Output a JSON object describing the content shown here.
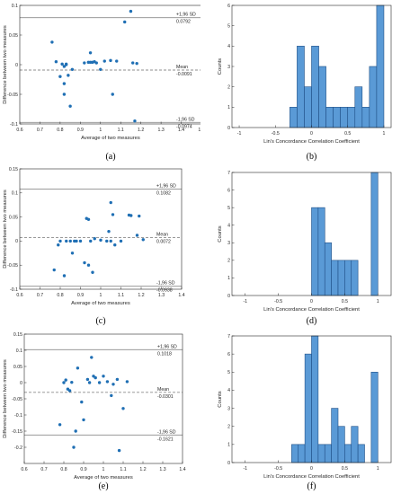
{
  "colors": {
    "marker": "#1f6fb4",
    "bar_fill": "#5a9ad6",
    "bar_edge": "#1f4f86",
    "sd_line": "#8c8c8c",
    "mean_line": "#8c8c8c",
    "axis": "#262626"
  },
  "chart_data": [
    {
      "id": "a",
      "caption": "(a)",
      "type": "scatter",
      "xlabel": "Average of two measures",
      "ylabel": "Difference between two measures",
      "xlim": [
        0.6,
        1.5
      ],
      "ylim": [
        -0.1,
        0.1
      ],
      "xticks": [
        0.6,
        0.7,
        0.8,
        0.9,
        1,
        1.1,
        1.2,
        1.3,
        1.4,
        1.5
      ],
      "xtick_labels": [
        "0.6",
        "0.7",
        "0.8",
        "0.9",
        "1",
        "1.1",
        "1.2",
        "1.3",
        "1.4",
        "1.5"
      ],
      "yticks": [
        -0.1,
        -0.05,
        0,
        0.05,
        0.1
      ],
      "ytick_labels": [
        "-0.1",
        "-0.05",
        "0",
        "0.05",
        "0.1"
      ],
      "lines": [
        {
          "y": 0.0792,
          "style": "solid",
          "label1": "+1,96 SD",
          "label2": "0.0792"
        },
        {
          "y": -0.0091,
          "style": "dashed",
          "label1": "Mean",
          "label2": "-0.0091"
        },
        {
          "y": -0.0974,
          "style": "solid",
          "label1": "-1,96 SD",
          "label2": "-0.0974"
        }
      ],
      "points": [
        [
          0.76,
          0.038
        ],
        [
          0.78,
          0.005
        ],
        [
          0.8,
          -0.02
        ],
        [
          0.81,
          0.001
        ],
        [
          0.82,
          -0.003
        ],
        [
          0.82,
          -0.032
        ],
        [
          0.83,
          0.001
        ],
        [
          0.83,
          0.0
        ],
        [
          0.84,
          -0.018
        ],
        [
          0.85,
          -0.07
        ],
        [
          0.82,
          -0.05
        ],
        [
          0.86,
          -0.008
        ],
        [
          0.92,
          0.003
        ],
        [
          0.94,
          0.004
        ],
        [
          0.95,
          0.004
        ],
        [
          0.97,
          0.005
        ],
        [
          0.98,
          0.003
        ],
        [
          0.96,
          0.004
        ],
        [
          1.0,
          -0.008
        ],
        [
          0.95,
          0.02
        ],
        [
          1.02,
          0.006
        ],
        [
          1.05,
          0.007
        ],
        [
          1.08,
          0.006
        ],
        [
          1.06,
          -0.05
        ],
        [
          1.12,
          0.072
        ],
        [
          1.15,
          0.09
        ],
        [
          1.16,
          0.003
        ],
        [
          1.18,
          0.002
        ],
        [
          1.17,
          -0.095
        ]
      ]
    },
    {
      "id": "b",
      "caption": "(b)",
      "type": "bar",
      "xlabel": "Lin's Concordance Correlation Coefficient",
      "ylabel": "Counts",
      "xlim": [
        -1.1,
        1.1
      ],
      "ylim": [
        0,
        6
      ],
      "xticks": [
        -1,
        -0.5,
        0,
        0.5,
        1
      ],
      "xtick_labels": [
        "-1",
        "-0.5",
        "0",
        "0.5",
        "1"
      ],
      "yticks": [
        0,
        1,
        2,
        3,
        4,
        5,
        6
      ],
      "ytick_labels": [
        "0",
        "1",
        "2",
        "3",
        "4",
        "5",
        "6"
      ],
      "bin_edges": [
        -0.3,
        -0.2,
        -0.1,
        0,
        0.1,
        0.2,
        0.3,
        0.4,
        0.5,
        0.6,
        0.7,
        0.8,
        0.9,
        1.0
      ],
      "values": [
        1,
        4,
        2,
        4,
        3,
        1,
        1,
        1,
        1,
        2,
        1,
        3,
        6
      ]
    },
    {
      "id": "c",
      "caption": "(c)",
      "type": "scatter",
      "xlabel": "Average of two measures",
      "ylabel": "Difference between two measures",
      "xlim": [
        0.6,
        1.4
      ],
      "ylim": [
        -0.1,
        0.15
      ],
      "xticks": [
        0.6,
        0.7,
        0.8,
        0.9,
        1,
        1.1,
        1.2,
        1.3,
        1.4
      ],
      "xtick_labels": [
        "0.6",
        "0.7",
        "0.8",
        "0.9",
        "1",
        "1.1",
        "1.2",
        "1.3",
        "1.4"
      ],
      "yticks": [
        -0.1,
        -0.05,
        0,
        0.05,
        0.1,
        0.15
      ],
      "ytick_labels": [
        "-0.1",
        "-0.05",
        "0",
        "0.05",
        "0.1",
        "0.15"
      ],
      "lines": [
        {
          "y": 0.1082,
          "style": "solid",
          "label1": "+1,96 SD",
          "label2": "0.1082"
        },
        {
          "y": 0.0072,
          "style": "dashed",
          "label1": "Mean",
          "label2": "0.0072"
        },
        {
          "y": -0.0938,
          "style": "solid",
          "label1": "-1,96 SD",
          "label2": "-0.0938"
        }
      ],
      "points": [
        [
          0.77,
          -0.06
        ],
        [
          0.79,
          -0.008
        ],
        [
          0.8,
          0.0
        ],
        [
          0.82,
          -0.072
        ],
        [
          0.83,
          0.0
        ],
        [
          0.85,
          0.0
        ],
        [
          0.86,
          -0.025
        ],
        [
          0.87,
          0.0
        ],
        [
          0.88,
          0.0
        ],
        [
          0.9,
          0.0
        ],
        [
          0.92,
          -0.045
        ],
        [
          0.93,
          0.047
        ],
        [
          0.94,
          0.045
        ],
        [
          0.94,
          -0.05
        ],
        [
          0.95,
          0.0
        ],
        [
          0.96,
          -0.065
        ],
        [
          0.97,
          0.005
        ],
        [
          1.0,
          0.002
        ],
        [
          1.03,
          0.0
        ],
        [
          1.04,
          0.02
        ],
        [
          1.05,
          0.08
        ],
        [
          1.06,
          0.055
        ],
        [
          1.05,
          0.0
        ],
        [
          1.07,
          -0.008
        ],
        [
          1.1,
          0.0
        ],
        [
          1.14,
          0.054
        ],
        [
          1.15,
          0.053
        ],
        [
          1.18,
          0.012
        ],
        [
          1.19,
          0.052
        ],
        [
          1.21,
          0.003
        ]
      ]
    },
    {
      "id": "d",
      "caption": "(d)",
      "type": "bar",
      "xlabel": "Lin's Concordance Correlation Coefficient",
      "ylabel": "Counts",
      "xlim": [
        -1.2,
        1.2
      ],
      "ylim": [
        0,
        7
      ],
      "xticks": [
        -1,
        -0.5,
        0,
        0.5,
        1
      ],
      "xtick_labels": [
        "-1",
        "-0.5",
        "0",
        "0.5",
        "1"
      ],
      "yticks": [
        0,
        1,
        2,
        3,
        4,
        5,
        6,
        7
      ],
      "ytick_labels": [
        "0",
        "1",
        "2",
        "3",
        "4",
        "5",
        "6",
        "7"
      ],
      "bin_edges": [
        0,
        0.1,
        0.2,
        0.3,
        0.4,
        0.5,
        0.6,
        0.7,
        0.8,
        0.9,
        1.0
      ],
      "values": [
        5,
        5,
        3,
        2,
        2,
        2,
        2,
        0,
        0,
        7
      ]
    },
    {
      "id": "e",
      "caption": "(e)",
      "type": "scatter",
      "xlabel": "Average of two measures",
      "ylabel": "Difference between two measures",
      "xlim": [
        0.6,
        1.4
      ],
      "ylim": [
        -0.25,
        0.15
      ],
      "xticks": [
        0.6,
        0.7,
        0.8,
        0.9,
        1,
        1.1,
        1.2,
        1.3,
        1.4
      ],
      "xtick_labels": [
        "0.6",
        "0.7",
        "0.8",
        "0.9",
        "1",
        "1.1",
        "1.2",
        "1.3",
        "1.4"
      ],
      "yticks": [
        -0.2,
        -0.15,
        -0.1,
        -0.05,
        0,
        0.05,
        0.1,
        0.15
      ],
      "ytick_labels": [
        "-0.2",
        "-0.15",
        "-0.1",
        "-0.05",
        "0",
        "0.05",
        "0.1",
        "0.15"
      ],
      "lines": [
        {
          "y": 0.1018,
          "style": "solid",
          "label1": "+1,96 SD",
          "label2": "0.1018"
        },
        {
          "y": -0.0301,
          "style": "dashed",
          "label1": "Mean",
          "label2": "-0.0301"
        },
        {
          "y": -0.1621,
          "style": "solid",
          "label1": "-1,96 SD",
          "label2": "-0.1621"
        }
      ],
      "points": [
        [
          0.78,
          -0.13
        ],
        [
          0.8,
          0.0
        ],
        [
          0.81,
          0.008
        ],
        [
          0.82,
          -0.02
        ],
        [
          0.83,
          -0.025
        ],
        [
          0.84,
          0.001
        ],
        [
          0.85,
          -0.2
        ],
        [
          0.86,
          -0.15
        ],
        [
          0.87,
          0.045
        ],
        [
          0.89,
          -0.06
        ],
        [
          0.9,
          -0.115
        ],
        [
          0.92,
          0.01
        ],
        [
          0.93,
          0.0
        ],
        [
          0.94,
          0.078
        ],
        [
          0.95,
          0.02
        ],
        [
          0.96,
          0.015
        ],
        [
          0.98,
          0.0
        ],
        [
          1.0,
          0.02
        ],
        [
          1.02,
          0.003
        ],
        [
          1.04,
          -0.04
        ],
        [
          1.05,
          -0.005
        ],
        [
          1.07,
          0.01
        ],
        [
          1.08,
          -0.21
        ],
        [
          1.1,
          -0.08
        ],
        [
          1.12,
          0.003
        ]
      ]
    },
    {
      "id": "f",
      "caption": "(f)",
      "type": "bar",
      "xlabel": "Lin's Concordance Correlation Coefficient",
      "ylabel": "Counts",
      "xlim": [
        -1.2,
        1.2
      ],
      "ylim": [
        0,
        7
      ],
      "xticks": [
        -1,
        -0.5,
        0,
        0.5,
        1
      ],
      "xtick_labels": [
        "-1",
        "-0.5",
        "0",
        "0.5",
        "1"
      ],
      "yticks": [
        0,
        1,
        2,
        3,
        4,
        5,
        6,
        7
      ],
      "ytick_labels": [
        "0",
        "1",
        "2",
        "3",
        "4",
        "5",
        "6",
        "7"
      ],
      "bin_edges": [
        -0.3,
        -0.2,
        -0.1,
        0,
        0.1,
        0.2,
        0.3,
        0.4,
        0.5,
        0.6,
        0.7,
        0.8,
        0.9,
        1.0
      ],
      "values": [
        1,
        1,
        6,
        7,
        1,
        1,
        3,
        2,
        1,
        2,
        1,
        0,
        5
      ]
    }
  ]
}
